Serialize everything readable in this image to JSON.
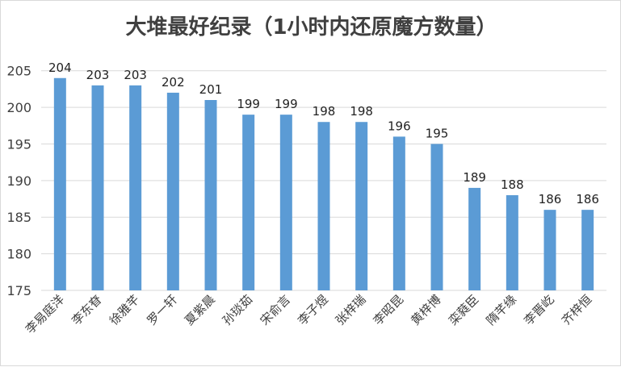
{
  "chart_data": {
    "type": "bar",
    "title": "大堆最好纪录（1小时内还原魔方数量）",
    "categories": [
      "李易庭洋",
      "李东眘",
      "徐雅芊",
      "罗一轩",
      "夏紫晨",
      "孙琰茹",
      "宋俞言",
      "李子煜",
      "张梓瑞",
      "李昭昆",
      "黄梓博",
      "栾蕤臣",
      "隋芊缘",
      "李晋屹",
      "齐梓恒"
    ],
    "values": [
      204,
      203,
      203,
      202,
      201,
      199,
      199,
      198,
      198,
      196,
      195,
      189,
      188,
      186,
      186
    ],
    "yticks": [
      175,
      180,
      185,
      190,
      195,
      200,
      205
    ],
    "ylim": [
      175,
      207.5
    ],
    "xlabel": "",
    "ylabel": "",
    "grid": true,
    "bar_color": "#5b9bd5",
    "grid_color": "#d9d9d9"
  }
}
